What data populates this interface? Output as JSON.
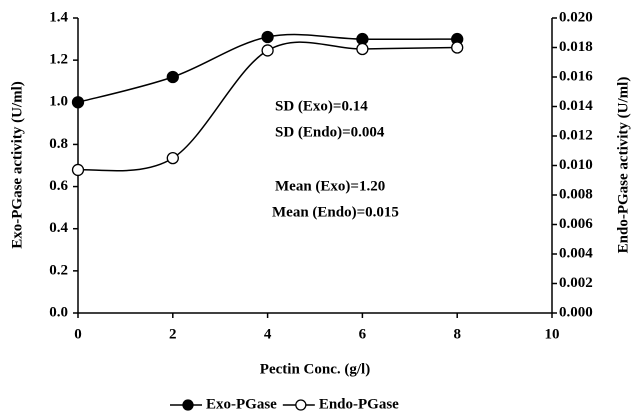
{
  "chart_data": {
    "type": "line",
    "x_label": "Pectin Conc. (g/l)",
    "y_label": "Exo-PGase activity (U/ml)",
    "y2_label": "Endo-PGase activity (U/ml)",
    "x": [
      0,
      2,
      4,
      6,
      8
    ],
    "series": [
      {
        "name": "Exo-PGase",
        "color": "#000000",
        "marker": "filled",
        "values": [
          1.0,
          1.12,
          1.31,
          1.3,
          1.3
        ]
      },
      {
        "name": "Endo-PGase",
        "color": "#000000",
        "marker": "open",
        "axis": "y2",
        "values": [
          0.0097,
          0.0105,
          0.0178,
          0.0179,
          0.018
        ]
      }
    ],
    "xlim": [
      0,
      10
    ],
    "xticks": [
      0,
      2,
      4,
      6,
      8,
      10
    ],
    "ylim": [
      0,
      1.4
    ],
    "yticks": [
      {
        "value": 0,
        "label": "0.0"
      },
      0.2,
      0.4,
      0.6,
      0.8,
      {
        "value": 1,
        "label": "1.0"
      },
      1.2,
      1.4
    ],
    "y2lim": [
      0,
      0.02
    ],
    "y2ticks": [
      {
        "value": 0,
        "label": "0.000"
      },
      {
        "value": 0.002,
        "label": "0.002"
      },
      {
        "value": 0.004,
        "label": "0.004"
      },
      {
        "value": 0.006,
        "label": "0.006"
      },
      {
        "value": 0.008,
        "label": "0.008"
      },
      {
        "value": 0.01,
        "label": "0.010"
      },
      {
        "value": 0.012,
        "label": "0.012"
      },
      {
        "value": 0.014,
        "label": "0.014"
      },
      {
        "value": 0.016,
        "label": "0.016"
      },
      {
        "value": 0.018,
        "label": "0.018"
      },
      {
        "value": 0.02,
        "label": "0.020"
      }
    ],
    "annotations": [
      "SD (Exo)=0.14",
      "SD (Endo)=0.004",
      "Mean (Exo)=1.20",
      "Mean (Endo)=0.015"
    ],
    "grid": false
  }
}
